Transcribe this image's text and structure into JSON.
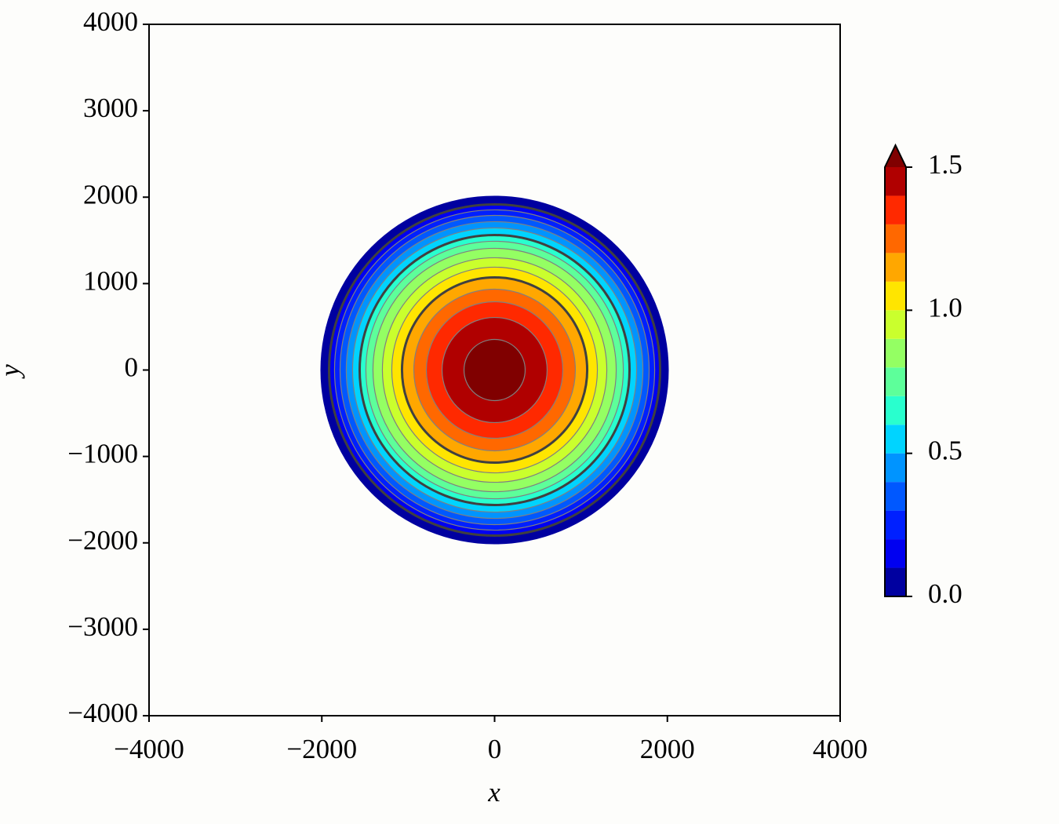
{
  "chart_data": {
    "type": "contour",
    "xlabel": "x",
    "ylabel": "y",
    "xlim": [
      -4000,
      4000
    ],
    "ylim": [
      -4000,
      4000
    ],
    "xticks": [
      {
        "value": -4000,
        "label": "−4000"
      },
      {
        "value": -2000,
        "label": "−2000"
      },
      0,
      2000,
      4000
    ],
    "yticks": [
      {
        "value": -4000,
        "label": "−4000"
      },
      {
        "value": -3000,
        "label": "−3000"
      },
      {
        "value": -2000,
        "label": "−2000"
      },
      {
        "value": -1000,
        "label": "−1000"
      },
      0,
      1000,
      2000,
      3000,
      4000
    ],
    "center": [
      0,
      0
    ],
    "levels": [
      0.0,
      0.1,
      0.2,
      0.3,
      0.4,
      0.5,
      0.6,
      0.7,
      0.8,
      0.9,
      1.0,
      1.1,
      1.2,
      1.3,
      1.4,
      1.5
    ],
    "contour_radii": [
      2016,
      1916,
      1853,
      1789,
      1717,
      1644,
      1562,
      1490,
      1408,
      1299,
      1190,
      1072,
      935,
      790,
      608,
      354
    ],
    "colors": [
      "#0000a0",
      "#0000f1",
      "#0020ff",
      "#0058ff",
      "#0094ff",
      "#00d4ff",
      "#29ffce",
      "#5dff9a",
      "#94ff63",
      "#caff2d",
      "#ffe500",
      "#ffa700",
      "#ff6800",
      "#ff2900",
      "#b00000",
      "#800000"
    ],
    "extend": "max",
    "line_color": "#808080",
    "bold_line_color": "#404040",
    "bold_levels": [
      0.1,
      0.6,
      1.1
    ],
    "colorbar_lim": [
      0.0,
      1.5
    ],
    "colorbar_ticks": [
      {
        "value": 0.0,
        "label": "0.0"
      },
      0.5,
      {
        "value": 1.0,
        "label": "1.0"
      },
      1.5
    ]
  }
}
